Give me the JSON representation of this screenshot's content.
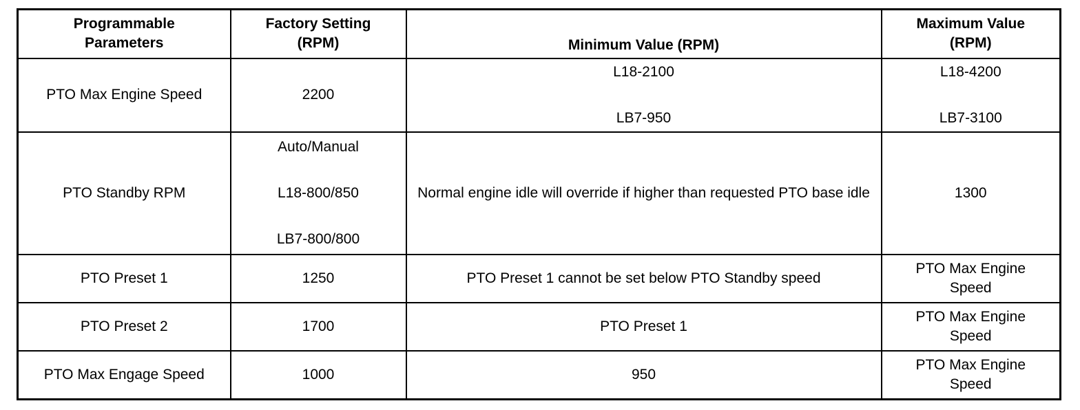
{
  "table": {
    "headers": [
      "Programmable\nParameters",
      "Factory Setting\n(RPM)",
      "Minimum Value (RPM)",
      "Maximum Value\n(RPM)"
    ],
    "rows": [
      [
        "PTO Max Engine Speed",
        "2200",
        "L18-2100\n\nLB7-950",
        "L18-4200\n\nLB7-3100"
      ],
      [
        "PTO Standby RPM",
        "Auto/Manual\n\nL18-800/850\n\nLB7-800/800",
        "Normal engine idle will override if higher than requested PTO base idle",
        "1300"
      ],
      [
        "PTO Preset 1",
        "1250",
        "PTO Preset 1 cannot be set below PTO Standby speed",
        "PTO Max Engine\nSpeed"
      ],
      [
        "PTO Preset 2",
        "1700",
        "PTO Preset 1",
        "PTO Max Engine\nSpeed"
      ],
      [
        "PTO Max Engage Speed",
        "1000",
        "950",
        "PTO Max Engine\nSpeed"
      ]
    ]
  }
}
